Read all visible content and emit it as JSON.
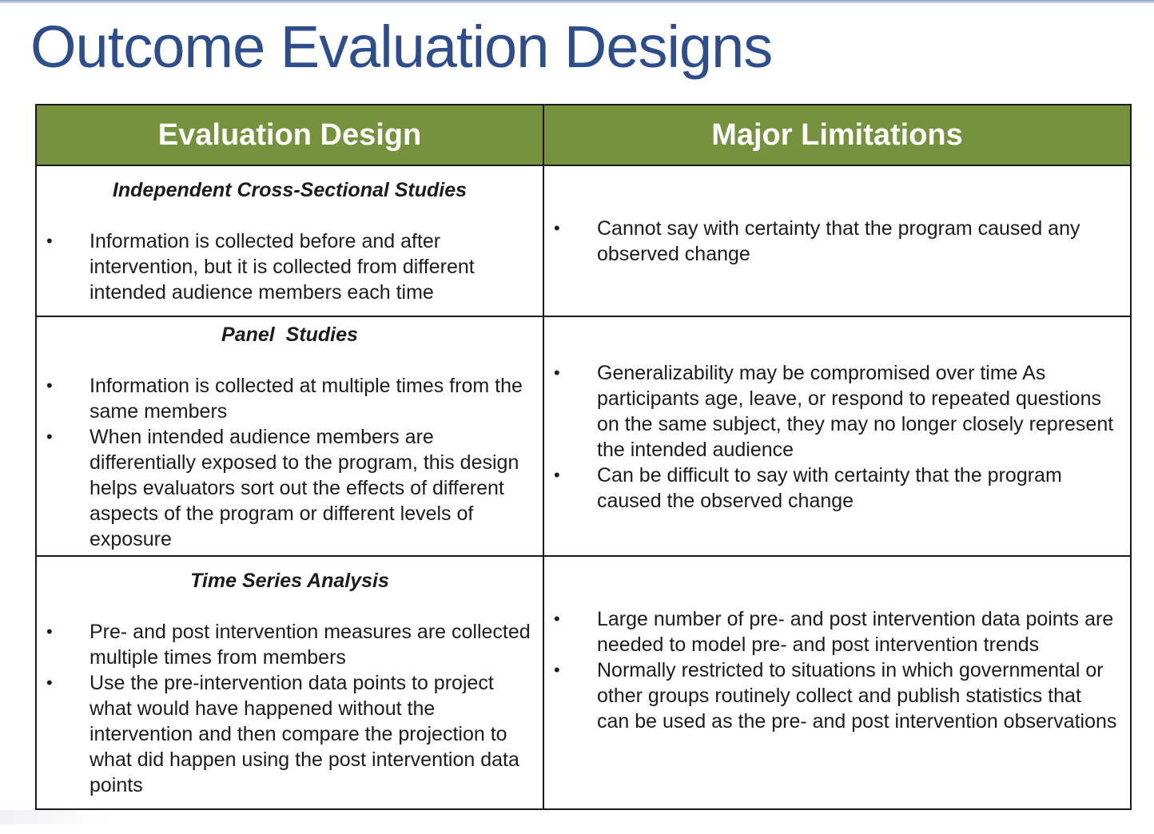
{
  "title": "Outcome Evaluation Designs",
  "colors": {
    "title": "#2e4d8c",
    "header_bg": "#77923c",
    "header_text": "#ffffff",
    "border": "#1a1a1a"
  },
  "table": {
    "headers": [
      "Evaluation Design",
      "Major Limitations"
    ],
    "rows": [
      {
        "design": "Independent Cross-Sectional Studies",
        "design_points": [
          "Information is collected before and after intervention, but it is collected from different intended audience members each time"
        ],
        "limitations": [
          "Cannot say with certainty that the program caused any observed change"
        ]
      },
      {
        "design": "Panel  Studies",
        "design_points": [
          "Information is collected at multiple times from the same members",
          "When intended audience members are differentially exposed to the program, this design helps evaluators sort out the effects of different aspects of the program or different levels of exposure"
        ],
        "limitations": [
          "Generalizability may be compromised over time  As participants age, leave, or respond to repeated questions on the same subject, they may no longer closely represent the intended audience",
          "Can be difficult to say with certainty that the program caused the observed change"
        ]
      },
      {
        "design": "Time Series Analysis",
        "design_points": [
          "Pre- and post intervention measures are collected multiple times from members",
          "Use the pre-intervention data points to project what would have happened without the intervention and then compare the projection to what did happen using the post intervention data points"
        ],
        "limitations": [
          "Large number of pre- and post intervention data points are needed to model pre- and post intervention trends",
          "Normally restricted to situations in which governmental or other groups routinely collect and publish statistics that can be used as the pre- and post intervention observations"
        ]
      }
    ],
    "bullet_glyph": "•"
  }
}
